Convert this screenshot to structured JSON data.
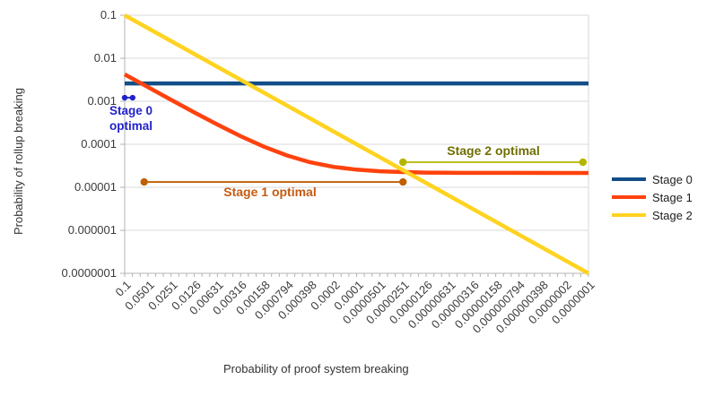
{
  "chart_data": {
    "type": "line",
    "title": "",
    "xlabel": "Probability of proof system breaking",
    "ylabel": "Probability of rollup breaking",
    "x_scale": "log",
    "y_scale": "log",
    "x_range": [
      0.1,
      1e-07
    ],
    "y_range": [
      0.1,
      1e-07
    ],
    "grid": "horizontal",
    "legend_position": "right",
    "x_axis": {
      "label": "Probability of proof system breaking",
      "tick_labels": [
        "0.1",
        "0.0501",
        "0.0251",
        "0.0126",
        "0.00631",
        "0.00316",
        "0.00158",
        "0.000794",
        "0.000398",
        "0.0002",
        "0.0001",
        "0.0000501",
        "0.0000251",
        "0.0000126",
        "0.00000631",
        "0.00000316",
        "0.00000158",
        "0.000000794",
        "0.000000398",
        "0.0000002",
        "0.0000001"
      ]
    },
    "y_axis": {
      "label": "Probability of rollup breaking",
      "tick_labels": [
        "0.1",
        "0.01",
        "0.001",
        "0.0001",
        "0.00001",
        "0.000001",
        "0.0000001"
      ]
    },
    "series": [
      {
        "name": "Stage 0",
        "color": "#124E87",
        "points": [
          [
            0.1,
            0.0026
          ],
          [
            1e-07,
            0.0026
          ]
        ]
      },
      {
        "name": "Stage 1",
        "color": "#FF420E",
        "points": [
          [
            0.1,
            0.00422
          ],
          [
            0.0501,
            0.00213
          ],
          [
            0.0251,
            0.00108
          ],
          [
            0.0126,
            0.000551
          ],
          [
            0.00631,
            0.000287
          ],
          [
            0.00316,
            0.000154
          ],
          [
            0.00158,
            8.79e-05
          ],
          [
            0.000794,
            5.49e-05
          ],
          [
            0.000398,
            3.82e-05
          ],
          [
            0.0002,
            2.99e-05
          ],
          [
            0.0001,
            2.57e-05
          ],
          [
            5.01e-05,
            2.36e-05
          ],
          [
            2.51e-05,
            2.26e-05
          ],
          [
            1.26e-05,
            2.2e-05
          ],
          [
            6.31e-06,
            2.18e-05
          ],
          [
            3.16e-06,
            2.16e-05
          ],
          [
            1e-06,
            2.16e-05
          ],
          [
            1e-07,
            2.15e-05
          ]
        ]
      },
      {
        "name": "Stage 2",
        "color": "#FFD320",
        "points": [
          [
            0.1,
            0.1
          ],
          [
            1e-07,
            1e-07
          ]
        ]
      }
    ],
    "annotations": [
      {
        "id": "stage0-optimal",
        "text": "Stage 0 optimal",
        "text_line1": "Stage 0",
        "text_line2": "optimal",
        "color": "#2222CC",
        "line_color": "#2222CC",
        "x_start": 0.1,
        "x_end": 0.079,
        "y": 0.00121,
        "label_position": "below"
      },
      {
        "id": "stage1-optimal",
        "text": "Stage 1 optimal",
        "color": "#C55A11",
        "line_color": "#C05F04",
        "x_start": 0.056,
        "x_end": 2.51e-05,
        "y": 1.33e-05,
        "label_position": "below"
      },
      {
        "id": "stage2-optimal",
        "text": "Stage 2 optimal",
        "color": "#6F6F00",
        "line_color": "#B5B500",
        "x_start": 2.51e-05,
        "x_end": 1.18e-07,
        "y": 3.83e-05,
        "label_position": "above"
      }
    ]
  }
}
